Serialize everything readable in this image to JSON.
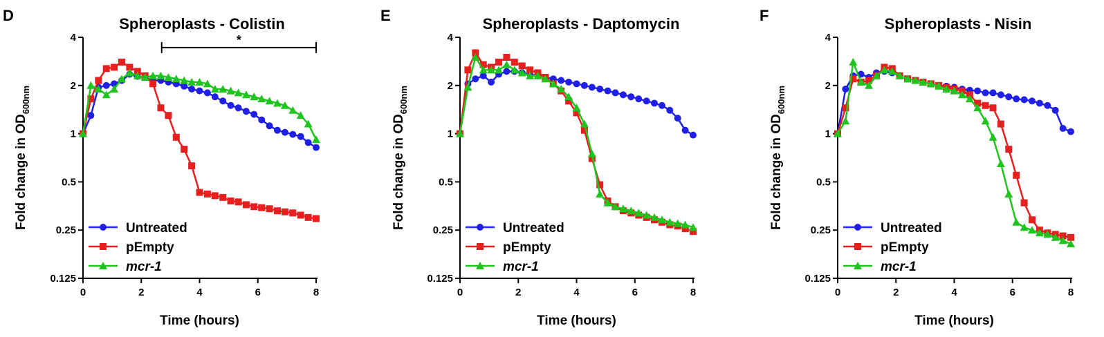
{
  "figure": {
    "colors": {
      "untreated": "#1f1fe6",
      "pempty": "#e61f1f",
      "mcr": "#1fc41f",
      "axis": "#000000"
    }
  },
  "chart_data": [
    {
      "panel": "D",
      "type": "line",
      "title": "Spheroplasts - Colistin",
      "xlabel": "Time (hours)",
      "ylabel_main": "Fold change in OD",
      "ylabel_sub": "600nm",
      "xlim": [
        0,
        8
      ],
      "ylim": [
        0.125,
        4
      ],
      "yscale": "log2",
      "xticks": [
        "0",
        "2",
        "4",
        "6",
        "8"
      ],
      "yticks": [
        "0.125",
        "0.25",
        "0.5",
        "1",
        "2",
        "4"
      ],
      "legend": {
        "position": "bottom-left",
        "items": [
          "Untreated",
          "pEmpty",
          "mcr-1"
        ]
      },
      "annotation": {
        "text": "*",
        "x_from": 2.7,
        "x_to": 8.0,
        "y": 3.45
      },
      "series": [
        {
          "name": "Untreated",
          "marker": "circle",
          "x": [
            0,
            0.27,
            0.53,
            0.8,
            1.07,
            1.33,
            1.6,
            1.87,
            2.13,
            2.4,
            2.67,
            2.93,
            3.2,
            3.47,
            3.73,
            4,
            4.27,
            4.53,
            4.8,
            5.07,
            5.33,
            5.6,
            5.87,
            6.13,
            6.4,
            6.67,
            6.93,
            7.2,
            7.47,
            7.73,
            8
          ],
          "y": [
            1,
            1.3,
            1.95,
            2,
            2.05,
            2.15,
            2.35,
            2.28,
            2.25,
            2.15,
            2.15,
            2.1,
            2.05,
            1.98,
            1.9,
            1.85,
            1.8,
            1.7,
            1.6,
            1.5,
            1.45,
            1.38,
            1.32,
            1.22,
            1.12,
            1.05,
            1.02,
            0.99,
            0.96,
            0.88,
            0.82
          ]
        },
        {
          "name": "pEmpty",
          "marker": "square",
          "x": [
            0,
            0.27,
            0.53,
            0.8,
            1.07,
            1.33,
            1.6,
            1.87,
            2.13,
            2.4,
            2.67,
            2.93,
            3.2,
            3.47,
            3.73,
            4,
            4.27,
            4.53,
            4.8,
            5.07,
            5.33,
            5.6,
            5.87,
            6.13,
            6.4,
            6.67,
            6.93,
            7.2,
            7.47,
            7.73,
            8
          ],
          "y": [
            1,
            1.65,
            2.15,
            2.55,
            2.6,
            2.8,
            2.6,
            2.45,
            2.3,
            2.05,
            1.45,
            1.3,
            0.95,
            0.8,
            0.63,
            0.43,
            0.42,
            0.41,
            0.4,
            0.38,
            0.375,
            0.36,
            0.35,
            0.345,
            0.34,
            0.33,
            0.325,
            0.32,
            0.31,
            0.3,
            0.295
          ]
        },
        {
          "name": "mcr-1",
          "marker": "triangle",
          "x": [
            0,
            0.27,
            0.53,
            0.8,
            1.07,
            1.33,
            1.6,
            1.87,
            2.13,
            2.4,
            2.67,
            2.93,
            3.2,
            3.47,
            3.73,
            4,
            4.27,
            4.53,
            4.8,
            5.07,
            5.33,
            5.6,
            5.87,
            6.13,
            6.4,
            6.67,
            6.93,
            7.2,
            7.47,
            7.73,
            8
          ],
          "y": [
            1,
            2.0,
            1.9,
            1.75,
            1.9,
            2.2,
            2.4,
            2.3,
            2.25,
            2.3,
            2.3,
            2.25,
            2.2,
            2.15,
            2.1,
            2.1,
            2.05,
            1.9,
            1.9,
            1.85,
            1.8,
            1.75,
            1.7,
            1.65,
            1.6,
            1.55,
            1.5,
            1.4,
            1.3,
            1.15,
            0.92
          ]
        }
      ]
    },
    {
      "panel": "E",
      "type": "line",
      "title": "Spheroplasts - Daptomycin",
      "xlabel": "Time (hours)",
      "ylabel_main": "Fold change in OD",
      "ylabel_sub": "600nm",
      "xlim": [
        0,
        8
      ],
      "ylim": [
        0.125,
        4
      ],
      "yscale": "log2",
      "xticks": [
        "0",
        "2",
        "4",
        "6",
        "8"
      ],
      "yticks": [
        "0.125",
        "0.25",
        "0.5",
        "1",
        "2",
        "4"
      ],
      "legend": {
        "position": "bottom-left",
        "items": [
          "Untreated",
          "pEmpty",
          "mcr-1"
        ]
      },
      "series": [
        {
          "name": "Untreated",
          "marker": "circle",
          "x": [
            0,
            0.27,
            0.53,
            0.8,
            1.07,
            1.33,
            1.6,
            1.87,
            2.13,
            2.4,
            2.67,
            2.93,
            3.2,
            3.47,
            3.73,
            4,
            4.27,
            4.53,
            4.8,
            5.07,
            5.33,
            5.6,
            5.87,
            6.13,
            6.4,
            6.67,
            6.93,
            7.2,
            7.47,
            7.73,
            8
          ],
          "y": [
            1,
            2.05,
            2.2,
            2.3,
            2.1,
            2.35,
            2.45,
            2.45,
            2.4,
            2.35,
            2.3,
            2.25,
            2.2,
            2.15,
            2.1,
            2.05,
            2.0,
            1.95,
            1.9,
            1.85,
            1.8,
            1.75,
            1.7,
            1.65,
            1.6,
            1.55,
            1.5,
            1.4,
            1.25,
            1.05,
            0.98
          ]
        },
        {
          "name": "pEmpty",
          "marker": "square",
          "x": [
            0,
            0.27,
            0.53,
            0.8,
            1.07,
            1.33,
            1.6,
            1.87,
            2.13,
            2.4,
            2.67,
            2.93,
            3.2,
            3.47,
            3.73,
            4,
            4.27,
            4.53,
            4.8,
            5.07,
            5.33,
            5.6,
            5.87,
            6.13,
            6.4,
            6.67,
            6.93,
            7.2,
            7.47,
            7.73,
            8
          ],
          "y": [
            1,
            2.5,
            3.2,
            2.7,
            2.6,
            2.8,
            3.0,
            2.8,
            2.65,
            2.5,
            2.4,
            2.25,
            2.05,
            1.85,
            1.6,
            1.35,
            1.05,
            0.7,
            0.48,
            0.38,
            0.35,
            0.33,
            0.32,
            0.31,
            0.3,
            0.29,
            0.28,
            0.27,
            0.265,
            0.255,
            0.245
          ]
        },
        {
          "name": "mcr-1",
          "marker": "triangle",
          "x": [
            0,
            0.27,
            0.53,
            0.8,
            1.07,
            1.33,
            1.6,
            1.87,
            2.13,
            2.4,
            2.67,
            2.93,
            3.2,
            3.47,
            3.73,
            4,
            4.27,
            4.53,
            4.8,
            5.07,
            5.33,
            5.6,
            5.87,
            6.13,
            6.4,
            6.67,
            6.93,
            7.2,
            7.47,
            7.73,
            8
          ],
          "y": [
            1,
            1.95,
            3.0,
            2.5,
            2.5,
            2.5,
            2.7,
            2.5,
            2.4,
            2.3,
            2.3,
            2.2,
            2.05,
            1.9,
            1.7,
            1.45,
            1.15,
            0.75,
            0.42,
            0.37,
            0.35,
            0.34,
            0.33,
            0.32,
            0.31,
            0.3,
            0.29,
            0.28,
            0.275,
            0.27,
            0.26
          ]
        }
      ]
    },
    {
      "panel": "F",
      "type": "line",
      "title": "Spheroplasts - Nisin",
      "xlabel": "Time (hours)",
      "ylabel_main": "Fold change in OD",
      "ylabel_sub": "600nm",
      "xlim": [
        0,
        8
      ],
      "ylim": [
        0.125,
        4
      ],
      "yscale": "log2",
      "xticks": [
        "0",
        "2",
        "4",
        "6",
        "8"
      ],
      "yticks": [
        "0.125",
        "0.25",
        "0.5",
        "1",
        "2",
        "4"
      ],
      "legend": {
        "position": "bottom-left",
        "items": [
          "Untreated",
          "pEmpty",
          "mcr-1"
        ]
      },
      "series": [
        {
          "name": "Untreated",
          "marker": "circle",
          "x": [
            0,
            0.27,
            0.53,
            0.8,
            1.07,
            1.33,
            1.6,
            1.87,
            2.13,
            2.4,
            2.67,
            2.93,
            3.2,
            3.47,
            3.73,
            4,
            4.27,
            4.53,
            4.8,
            5.07,
            5.33,
            5.6,
            5.87,
            6.13,
            6.4,
            6.67,
            6.93,
            7.2,
            7.47,
            7.73,
            8
          ],
          "y": [
            1,
            1.9,
            2.3,
            2.35,
            2.25,
            2.4,
            2.45,
            2.4,
            2.3,
            2.2,
            2.15,
            2.1,
            2.05,
            2.0,
            1.98,
            1.95,
            1.9,
            1.87,
            1.85,
            1.8,
            1.8,
            1.75,
            1.7,
            1.65,
            1.63,
            1.6,
            1.55,
            1.5,
            1.4,
            1.08,
            1.03
          ]
        },
        {
          "name": "pEmpty",
          "marker": "square",
          "x": [
            0,
            0.27,
            0.53,
            0.8,
            1.07,
            1.33,
            1.6,
            1.87,
            2.13,
            2.4,
            2.67,
            2.93,
            3.2,
            3.47,
            3.73,
            4,
            4.27,
            4.53,
            4.8,
            5.07,
            5.33,
            5.6,
            5.87,
            6.13,
            6.4,
            6.67,
            6.93,
            7.2,
            7.47,
            7.73,
            8
          ],
          "y": [
            1,
            1.45,
            2.2,
            2.1,
            2.15,
            2.3,
            2.6,
            2.55,
            2.3,
            2.2,
            2.15,
            2.1,
            2.05,
            2.0,
            1.95,
            1.9,
            1.85,
            1.75,
            1.55,
            1.5,
            1.45,
            1.15,
            0.8,
            0.55,
            0.37,
            0.29,
            0.25,
            0.24,
            0.235,
            0.23,
            0.225
          ]
        },
        {
          "name": "mcr-1",
          "marker": "triangle",
          "x": [
            0,
            0.27,
            0.53,
            0.8,
            1.07,
            1.33,
            1.6,
            1.87,
            2.13,
            2.4,
            2.67,
            2.93,
            3.2,
            3.47,
            3.73,
            4,
            4.27,
            4.53,
            4.8,
            5.07,
            5.33,
            5.6,
            5.87,
            6.13,
            6.4,
            6.67,
            6.93,
            7.2,
            7.47,
            7.73,
            8
          ],
          "y": [
            1,
            1.2,
            2.8,
            2.1,
            2.0,
            2.3,
            2.5,
            2.45,
            2.3,
            2.2,
            2.15,
            2.1,
            2.05,
            1.98,
            1.9,
            1.85,
            1.75,
            1.65,
            1.45,
            1.2,
            0.95,
            0.65,
            0.42,
            0.28,
            0.26,
            0.25,
            0.24,
            0.235,
            0.225,
            0.215,
            0.205
          ]
        }
      ]
    }
  ]
}
